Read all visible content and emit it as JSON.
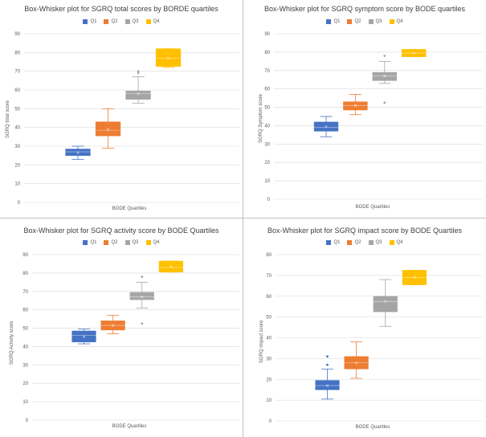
{
  "colors": {
    "Q1": "#4472c4",
    "Q2": "#ed7d31",
    "Q3": "#a5a5a5",
    "Q4": "#ffc000",
    "grid": "#d9d9d9",
    "border": "#bfbfbf"
  },
  "chart_data": [
    {
      "type": "box",
      "title": "Box-Whisker plot for SGRQ total scores by BORDE quartiles",
      "xlabel": "BODE Quartiles",
      "ylabel": "SGRQ total score",
      "ylim": [
        0,
        90
      ],
      "yticks": [
        "0",
        "10",
        "20",
        "30",
        "40",
        "50",
        "60",
        "70",
        "80",
        "90"
      ],
      "legend": [
        "Q1",
        "Q2",
        "Q3",
        "Q4"
      ],
      "series": [
        {
          "name": "Q1",
          "min": 23,
          "q1": 25,
          "median": 27,
          "q3": 28.5,
          "max": 30,
          "mean": 26.5,
          "outliers": []
        },
        {
          "name": "Q2",
          "min": 29,
          "q1": 35.5,
          "median": 38.5,
          "q3": 43,
          "max": 50,
          "mean": 39,
          "outliers": []
        },
        {
          "name": "Q3",
          "min": 53,
          "q1": 55,
          "median": 58,
          "q3": 59.5,
          "max": 67,
          "mean": 58,
          "outliers": [
            69,
            70
          ]
        },
        {
          "name": "Q4",
          "min": 72,
          "q1": 72.5,
          "median": 77,
          "q3": 82,
          "max": 82,
          "mean": 77,
          "outliers": []
        }
      ]
    },
    {
      "type": "box",
      "title": "Box-Whisker plot for SGRQ symptom score by BODE quartiles",
      "xlabel": "BODE Quartiles",
      "ylabel": "SGRQ Symptom score",
      "ylim": [
        0,
        90
      ],
      "yticks": [
        "0",
        "10",
        "20",
        "30",
        "40",
        "50",
        "60",
        "70",
        "80",
        "90"
      ],
      "legend": [
        "Q1",
        "Q2",
        "Q3",
        "Q4"
      ],
      "series": [
        {
          "name": "Q1",
          "min": 34,
          "q1": 37,
          "median": 39,
          "q3": 42,
          "max": 45,
          "mean": 39.5,
          "outliers": []
        },
        {
          "name": "Q2",
          "min": 46,
          "q1": 48.5,
          "median": 51,
          "q3": 53,
          "max": 57,
          "mean": 51,
          "outliers": []
        },
        {
          "name": "Q3",
          "min": 63,
          "q1": 64.5,
          "median": 67,
          "q3": 69,
          "max": 75,
          "mean": 67,
          "outliers": [
            78,
            52.5
          ]
        },
        {
          "name": "Q4",
          "min": 77.5,
          "q1": 77.5,
          "median": 79.5,
          "q3": 81.5,
          "max": 81.5,
          "mean": 79.5,
          "outliers": []
        }
      ]
    },
    {
      "type": "box",
      "title": "Box-Whisker plot for SGRQ activity score by BODE Quartiles",
      "xlabel": "BODE Quartiles",
      "ylabel": "SGRQ Activity score",
      "ylim": [
        0,
        90
      ],
      "yticks": [
        "0",
        "10",
        "20",
        "30",
        "40",
        "50",
        "60",
        "70",
        "80",
        "90"
      ],
      "legend": [
        "Q1",
        "Q2",
        "Q3",
        "Q4"
      ],
      "series": [
        {
          "name": "Q1",
          "min": 41.5,
          "q1": 42.5,
          "median": 46,
          "q3": 48.5,
          "max": 49.5,
          "mean": 45.5,
          "outliers": []
        },
        {
          "name": "Q2",
          "min": 47,
          "q1": 49,
          "median": 51.5,
          "q3": 54,
          "max": 57,
          "mean": 51.5,
          "outliers": []
        },
        {
          "name": "Q3",
          "min": 61,
          "q1": 65.5,
          "median": 67,
          "q3": 69.5,
          "max": 75,
          "mean": 67,
          "outliers": [
            78,
            52.5
          ]
        },
        {
          "name": "Q4",
          "min": 80.5,
          "q1": 80.5,
          "median": 83,
          "q3": 86.5,
          "max": 86.5,
          "mean": 83.5,
          "outliers": []
        }
      ]
    },
    {
      "type": "box",
      "title": "Box-Whisker plot for SGRQ impact score by BODE Quartiles",
      "xlabel": "BODE Quartiles",
      "ylabel": "SGRQ impact score",
      "ylim": [
        0,
        80
      ],
      "yticks": [
        "0",
        "10",
        "20",
        "30",
        "40",
        "50",
        "60",
        "70",
        "80"
      ],
      "legend": [
        "Q1",
        "Q2",
        "Q3",
        "Q4"
      ],
      "series": [
        {
          "name": "Q1",
          "min": 10.5,
          "q1": 15,
          "median": 17,
          "q3": 19.5,
          "max": 25,
          "mean": 17,
          "outliers": [
            31,
            27
          ]
        },
        {
          "name": "Q2",
          "min": 20.5,
          "q1": 25,
          "median": 28,
          "q3": 31,
          "max": 38,
          "mean": 28,
          "outliers": []
        },
        {
          "name": "Q3",
          "min": 45.5,
          "q1": 52.5,
          "median": 57.5,
          "q3": 60,
          "max": 68,
          "mean": 57.5,
          "outliers": []
        },
        {
          "name": "Q4",
          "min": 65.5,
          "q1": 65.5,
          "median": 69,
          "q3": 72.5,
          "max": 72.5,
          "mean": 69,
          "outliers": []
        }
      ]
    }
  ]
}
